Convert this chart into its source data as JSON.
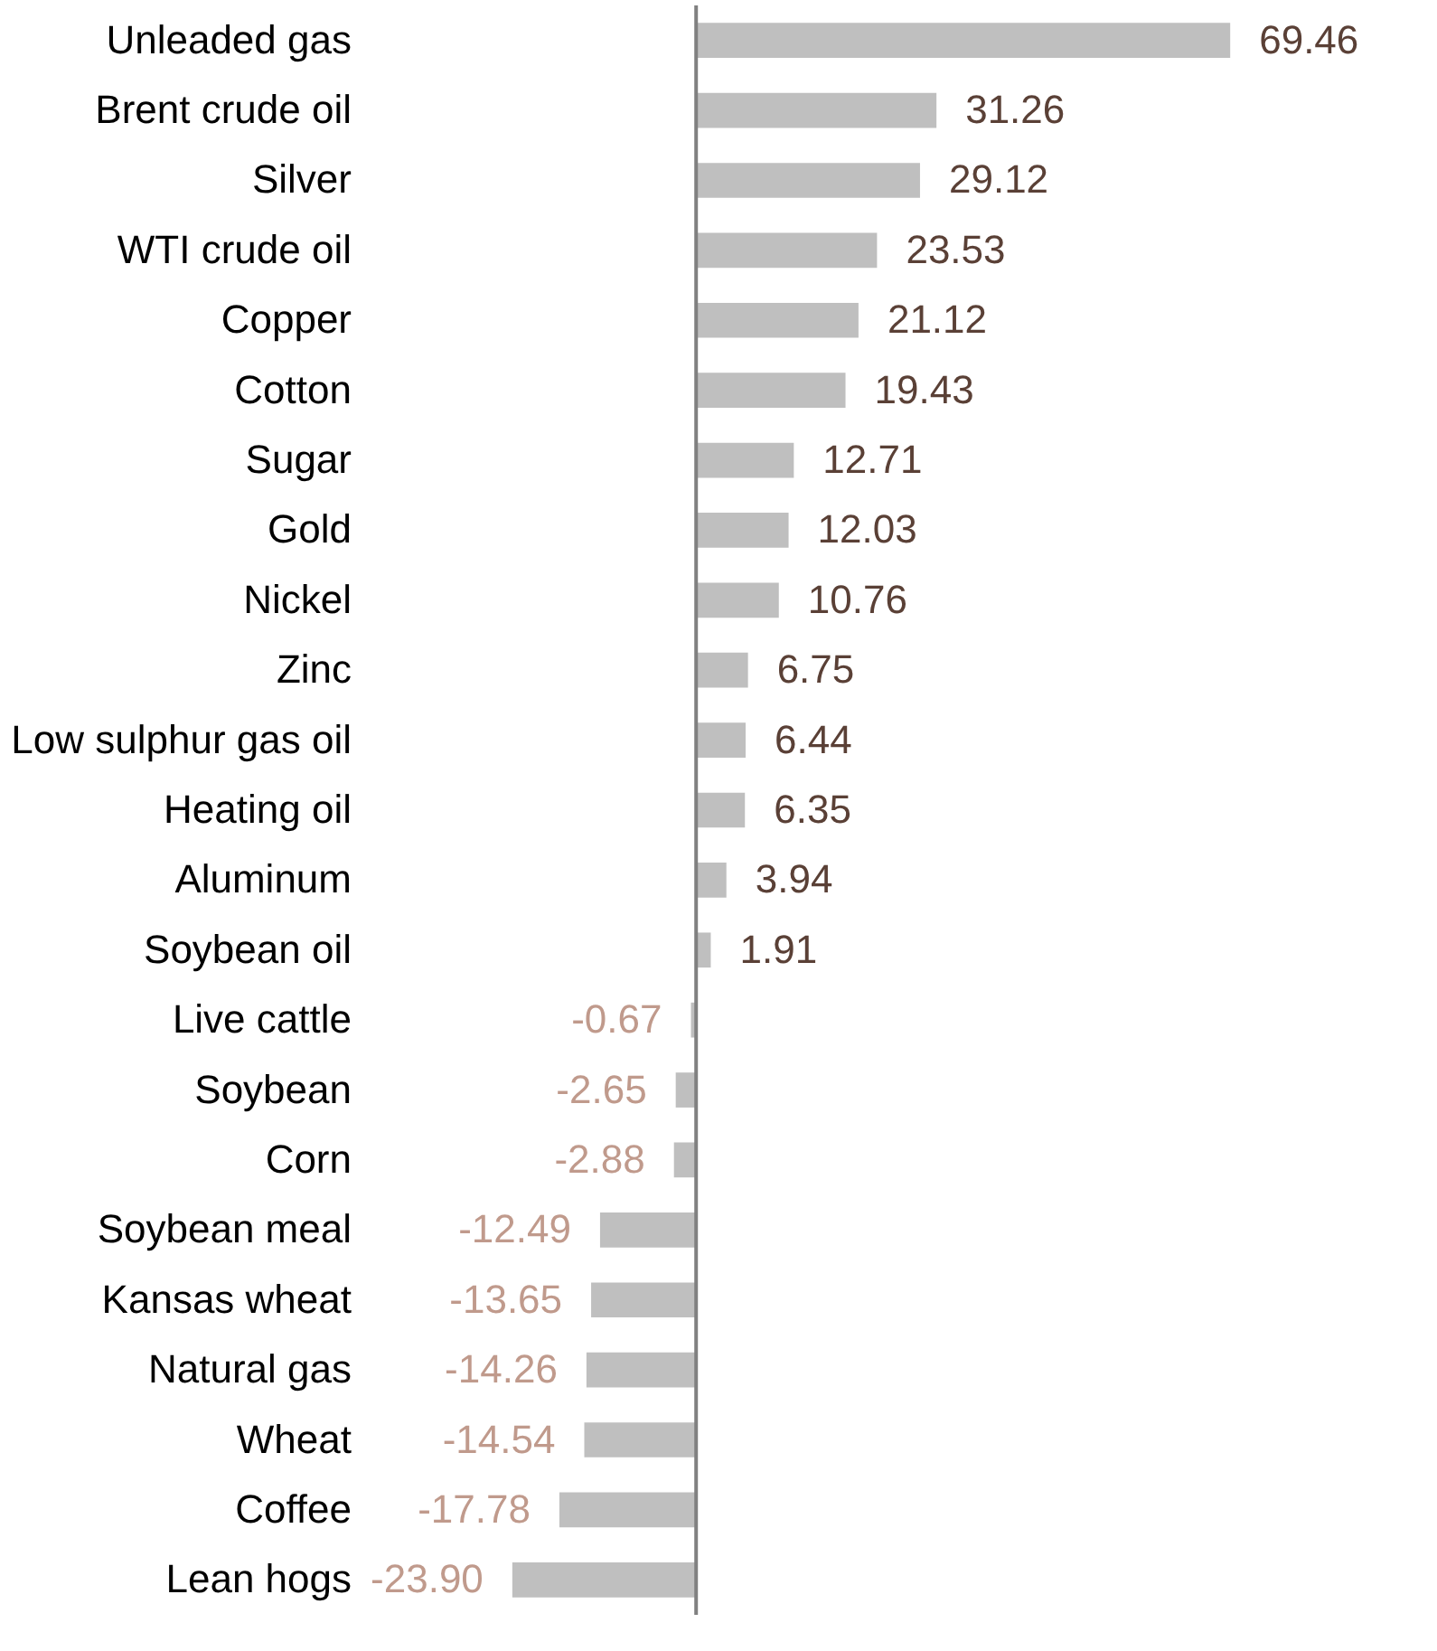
{
  "chart_data": {
    "type": "bar",
    "orientation": "horizontal",
    "grid": false,
    "categories": [
      "Unleaded gas",
      "Brent crude oil",
      "Silver",
      "WTI crude oil",
      "Copper",
      "Cotton",
      "Sugar",
      "Gold",
      "Nickel",
      "Zinc",
      "Low sulphur gas oil",
      "Heating oil",
      "Aluminum",
      "Soybean oil",
      "Live cattle",
      "Soybean",
      "Corn",
      "Soybean meal",
      "Kansas wheat",
      "Natural gas",
      "Wheat",
      "Coffee",
      "Lean hogs"
    ],
    "values": [
      69.46,
      31.26,
      29.12,
      23.53,
      21.12,
      19.43,
      12.71,
      12.03,
      10.76,
      6.75,
      6.44,
      6.35,
      3.94,
      1.91,
      -0.67,
      -2.65,
      -2.88,
      -12.49,
      -13.65,
      -14.26,
      -14.54,
      -17.78,
      -23.9
    ],
    "value_labels": [
      "69.46",
      "31.26",
      "29.12",
      "23.53",
      "21.12",
      "19.43",
      "12.71",
      "12.03",
      "10.76",
      "6.75",
      "6.44",
      "6.35",
      "3.94",
      "1.91",
      "-0.67",
      "-2.65",
      "-2.88",
      "-12.49",
      "-13.65",
      "-14.26",
      "-14.54",
      "-17.78",
      "-23.90"
    ],
    "color": "#bfbfbf"
  }
}
